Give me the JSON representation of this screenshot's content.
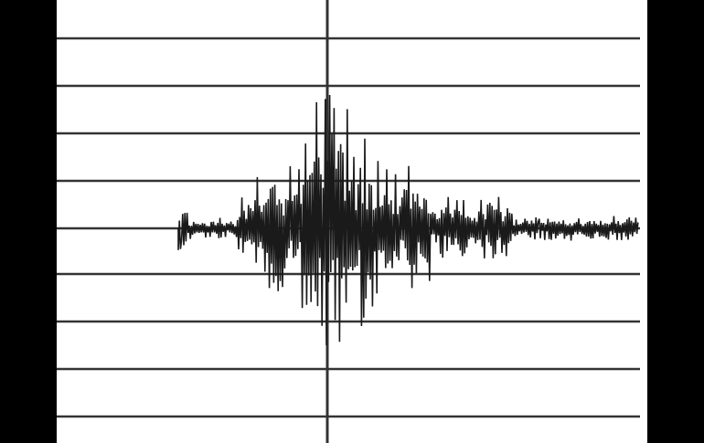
{
  "image": {
    "subject": "seismogram",
    "colors": {
      "background": "#000000",
      "paper": "#ffffff",
      "trace": "#1a1a1a",
      "grid": "#333333"
    }
  }
}
